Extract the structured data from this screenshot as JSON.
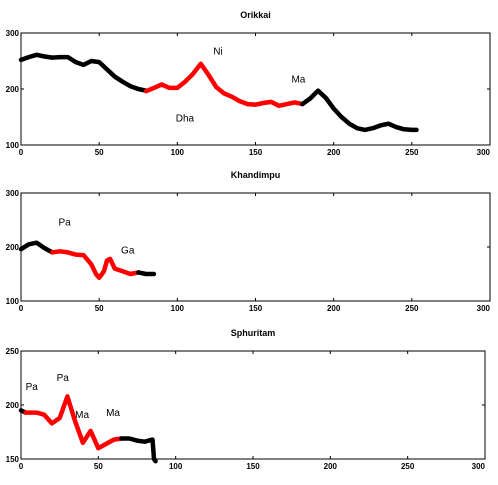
{
  "chart_data": [
    {
      "type": "line",
      "title": "Orikkai",
      "xlim": [
        0,
        300
      ],
      "ylim": [
        100,
        300
      ],
      "xticks": [
        0,
        50,
        100,
        150,
        200,
        250,
        300
      ],
      "yticks": [
        100,
        200,
        300
      ],
      "series": [
        {
          "color": "#000000",
          "x": [
            0,
            5,
            10,
            15,
            20,
            25,
            30,
            35,
            40,
            45,
            50,
            55,
            60,
            65,
            70,
            75,
            80
          ],
          "y": [
            252,
            257,
            261,
            258,
            256,
            257,
            257,
            248,
            243,
            250,
            248,
            235,
            222,
            213,
            205,
            200,
            197
          ]
        },
        {
          "color": "#ff0000",
          "x": [
            80,
            85,
            90,
            95,
            100,
            105,
            110,
            115,
            120,
            125,
            130,
            135,
            140,
            145,
            150,
            155,
            160,
            165,
            170,
            175,
            180
          ],
          "y": [
            196,
            202,
            208,
            202,
            202,
            213,
            227,
            245,
            225,
            203,
            192,
            186,
            178,
            173,
            172,
            175,
            177,
            170,
            173,
            176,
            173
          ]
        },
        {
          "color": "#000000",
          "x": [
            180,
            185,
            190,
            195,
            200,
            205,
            210,
            215,
            220,
            225,
            230,
            235,
            240,
            245,
            250,
            253
          ],
          "y": [
            173,
            183,
            197,
            184,
            165,
            150,
            138,
            130,
            127,
            130,
            135,
            138,
            132,
            128,
            127,
            127
          ]
        }
      ],
      "annotations": [
        {
          "text": "Ni",
          "x": 123,
          "y": 262
        },
        {
          "text": "Dha",
          "x": 99,
          "y": 142
        },
        {
          "text": "Ma",
          "x": 173,
          "y": 212
        }
      ]
    },
    {
      "type": "line",
      "title": "Khandimpu",
      "xlim": [
        0,
        300
      ],
      "ylim": [
        100,
        300
      ],
      "xticks": [
        0,
        50,
        100,
        150,
        200,
        250,
        300
      ],
      "yticks": [
        100,
        200,
        300
      ],
      "series": [
        {
          "color": "#000000",
          "x": [
            0,
            5,
            10,
            15,
            20
          ],
          "y": [
            196,
            205,
            208,
            198,
            190
          ]
        },
        {
          "color": "#ff0000",
          "x": [
            20,
            25,
            30,
            35,
            40,
            45,
            48,
            50,
            53,
            55,
            57,
            60,
            65,
            70,
            75
          ],
          "y": [
            190,
            192,
            190,
            186,
            185,
            168,
            150,
            143,
            155,
            175,
            178,
            160,
            155,
            150,
            153
          ]
        },
        {
          "color": "#000000",
          "x": [
            75,
            80,
            85
          ],
          "y": [
            153,
            150,
            150
          ]
        }
      ],
      "annotations": [
        {
          "text": "Pa",
          "x": 24,
          "y": 240
        },
        {
          "text": "Ga",
          "x": 64,
          "y": 188
        }
      ]
    },
    {
      "type": "line",
      "title": "Sphuritam",
      "xlim": [
        0,
        300
      ],
      "ylim": [
        150,
        250
      ],
      "xticks": [
        0,
        50,
        100,
        150,
        200,
        250,
        300
      ],
      "yticks": [
        150,
        200,
        250
      ],
      "series": [
        {
          "color": "#000000",
          "x": [
            0,
            3
          ],
          "y": [
            195,
            193
          ]
        },
        {
          "color": "#ff0000",
          "x": [
            3,
            10,
            15,
            20,
            25,
            30,
            35,
            40,
            45,
            50,
            55,
            60,
            65
          ],
          "y": [
            193,
            193,
            191,
            183,
            188,
            208,
            185,
            165,
            176,
            160,
            164,
            168,
            169
          ]
        },
        {
          "color": "#000000",
          "x": [
            65,
            70,
            75,
            80,
            85,
            86,
            87
          ],
          "y": [
            169,
            169,
            167,
            166,
            168,
            150,
            148
          ]
        }
      ],
      "annotations": [
        {
          "text": "Pa",
          "x": 3,
          "y": 214
        },
        {
          "text": "Pa",
          "x": 23,
          "y": 222
        },
        {
          "text": "Ma",
          "x": 35,
          "y": 188
        },
        {
          "text": "Ma",
          "x": 55,
          "y": 190
        }
      ]
    }
  ]
}
